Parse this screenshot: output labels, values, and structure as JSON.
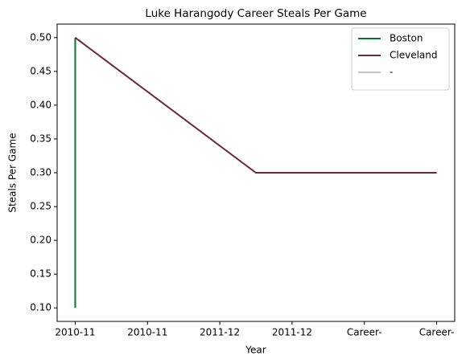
{
  "chart_data": {
    "type": "line",
    "title": "Luke Harangody Career Steals Per Game",
    "xlabel": "Year",
    "ylabel": "Steals Per Game",
    "xlim": [
      -0.25,
      5.25
    ],
    "ylim": [
      0.08,
      0.52
    ],
    "xticks": [
      {
        "value": 0,
        "label": "2010-11"
      },
      {
        "value": 1,
        "label": "2010-11"
      },
      {
        "value": 2,
        "label": "2011-12"
      },
      {
        "value": 3,
        "label": "2011-12"
      },
      {
        "value": 4,
        "label": "Career-"
      },
      {
        "value": 5,
        "label": "Career-"
      }
    ],
    "yticks": [
      {
        "value": 0.1,
        "label": "0.10"
      },
      {
        "value": 0.15,
        "label": "0.15"
      },
      {
        "value": 0.2,
        "label": "0.20"
      },
      {
        "value": 0.25,
        "label": "0.25"
      },
      {
        "value": 0.3,
        "label": "0.30"
      },
      {
        "value": 0.35,
        "label": "0.35"
      },
      {
        "value": 0.4,
        "label": "0.40"
      },
      {
        "value": 0.45,
        "label": "0.45"
      },
      {
        "value": 0.5,
        "label": "0.50"
      }
    ],
    "legend": "upper right",
    "series": [
      {
        "name": "Boston",
        "color": "#007a33",
        "x": [
          0,
          0
        ],
        "values": [
          0.1,
          0.5
        ]
      },
      {
        "name": "Cleveland",
        "color": "#6f263d",
        "x": [
          0,
          2.5,
          5
        ],
        "values": [
          0.5,
          0.3,
          0.3
        ]
      },
      {
        "name": "-",
        "color": "#c4c4c4",
        "x": [],
        "values": []
      }
    ]
  }
}
